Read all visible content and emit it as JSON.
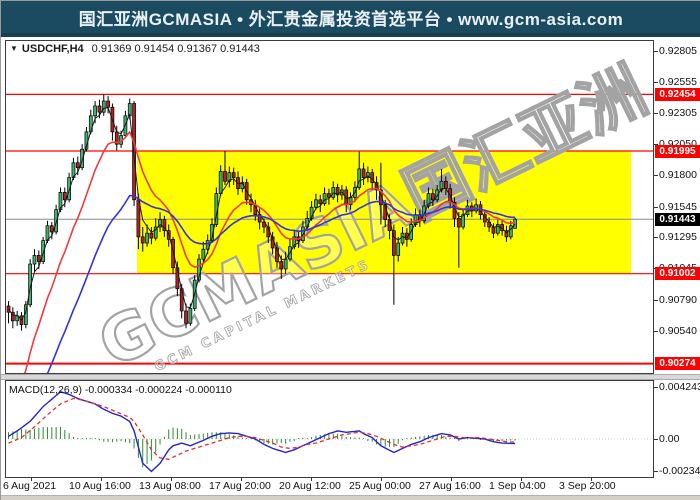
{
  "banner": {
    "text": "国汇亚洲GCMASIA • 外汇贵金属投资首选平台 • www.gcm-asia.com",
    "bg": "#1b4b61"
  },
  "chart": {
    "symbol": "USDCHF,H4",
    "dropdown_marker": "▼",
    "ohlc_text": "0.91369 0.91454 0.91367 0.91443"
  },
  "price_axis": {
    "ticks": [
      "0.92805",
      "0.92555",
      "0.92305",
      "0.92050",
      "0.91800",
      "0.91545",
      "0.91295",
      "0.91045",
      "0.90790",
      "0.90540"
    ],
    "level_badges": [
      {
        "label": "0.92454",
        "price": 0.92454,
        "type": "resistance"
      },
      {
        "label": "0.91995",
        "price": 0.91995,
        "type": "resistance"
      },
      {
        "label": "0.91002",
        "price": 0.91002,
        "type": "support"
      },
      {
        "label": "0.90274",
        "price": 0.90274,
        "type": "support"
      }
    ],
    "current_badge": {
      "label": "0.91443",
      "price": 0.91443
    }
  },
  "time_axis": {
    "labels": [
      "6 Aug 2021",
      "10 Aug 16:00",
      "13 Aug 08:00",
      "17 Aug 20:00",
      "20 Aug 12:00",
      "25 Aug 00:00",
      "27 Aug 16:00",
      "1 Sep 04:00",
      "3 Sep 20:00"
    ]
  },
  "macd_panel": {
    "indicator_label": "MACD(12,26,9)",
    "values_text": "-0.000334 -0.000224 -0.000110",
    "axis_ticks": [
      {
        "label": "0.004243",
        "value": 0.004243
      },
      {
        "label": "0.00",
        "value": 0.0
      },
      {
        "label": "-0.002345",
        "value": -0.002345
      }
    ]
  },
  "watermark": {
    "main": "GCMASIA国汇亚洲",
    "sub": "GCM CAPITAL MARKETS"
  },
  "colors": {
    "bull": "#3cb371",
    "bear": "#b22222",
    "wick": "#000000",
    "ma_fast": "#1a1a1a",
    "ma_mid": "#ef3b3b",
    "ma_slow": "#3434dd",
    "level_line": "#ff0000",
    "current_line": "#8a8a8a",
    "macd_line": "#2424cc",
    "signal_line": "#e03030",
    "histogram": "#2e8b2e",
    "highlight": "#ffff00",
    "badge_red": "#ff0000",
    "badge_black": "#000000"
  },
  "chart_data": {
    "type": "candlestick",
    "symbol": "USDCHF",
    "timeframe": "H4",
    "title": "USDCHF,H4",
    "last_ohlc": {
      "open": 0.91369,
      "high": 0.91454,
      "low": 0.91367,
      "close": 0.91443
    },
    "price_axis_top": 0.92805,
    "price_axis_bottom": 0.90274,
    "levels": {
      "resistance": [
        0.92454,
        0.91995
      ],
      "support": [
        0.91002,
        0.90274
      ],
      "current": 0.91443
    },
    "highlight_zone": {
      "price_top": 0.91995,
      "price_bottom": 0.91002
    },
    "x_labels": [
      "6 Aug 2021",
      "10 Aug 16:00",
      "13 Aug 08:00",
      "17 Aug 20:00",
      "20 Aug 12:00",
      "25 Aug 00:00",
      "27 Aug 16:00",
      "1 Sep 04:00",
      "3 Sep 20:00"
    ],
    "candles": [
      [
        0.9074,
        0.9078,
        0.906,
        0.9069
      ],
      [
        0.9069,
        0.9073,
        0.9056,
        0.9062
      ],
      [
        0.9062,
        0.907,
        0.9058,
        0.9066
      ],
      [
        0.9066,
        0.9069,
        0.9054,
        0.9059
      ],
      [
        0.9059,
        0.9078,
        0.9056,
        0.9075
      ],
      [
        0.9075,
        0.9112,
        0.9073,
        0.9108
      ],
      [
        0.9108,
        0.912,
        0.9102,
        0.9115
      ],
      [
        0.9115,
        0.9119,
        0.9104,
        0.911
      ],
      [
        0.911,
        0.913,
        0.9108,
        0.9127
      ],
      [
        0.9127,
        0.9143,
        0.9125,
        0.9139
      ],
      [
        0.9139,
        0.9142,
        0.9128,
        0.9134
      ],
      [
        0.9134,
        0.9156,
        0.9132,
        0.9152
      ],
      [
        0.9152,
        0.917,
        0.915,
        0.9166
      ],
      [
        0.9166,
        0.917,
        0.9154,
        0.916
      ],
      [
        0.916,
        0.9182,
        0.9158,
        0.9178
      ],
      [
        0.9178,
        0.9194,
        0.9176,
        0.919
      ],
      [
        0.919,
        0.9195,
        0.918,
        0.9186
      ],
      [
        0.9186,
        0.9205,
        0.9184,
        0.9201
      ],
      [
        0.9201,
        0.9219,
        0.9199,
        0.9215
      ],
      [
        0.9215,
        0.9233,
        0.9213,
        0.9228
      ],
      [
        0.9228,
        0.924,
        0.9222,
        0.9236
      ],
      [
        0.9236,
        0.9241,
        0.9226,
        0.9231
      ],
      [
        0.9231,
        0.92454,
        0.9228,
        0.924
      ],
      [
        0.924,
        0.9244,
        0.923,
        0.9235
      ],
      [
        0.9235,
        0.9238,
        0.9208,
        0.9215
      ],
      [
        0.9215,
        0.922,
        0.92,
        0.9205
      ],
      [
        0.9205,
        0.9216,
        0.9202,
        0.9212
      ],
      [
        0.9212,
        0.9232,
        0.921,
        0.9228
      ],
      [
        0.9228,
        0.9242,
        0.9225,
        0.9238
      ],
      [
        0.9238,
        0.924,
        0.9155,
        0.916
      ],
      [
        0.916,
        0.9165,
        0.912,
        0.913
      ],
      [
        0.913,
        0.9138,
        0.9118,
        0.9125
      ],
      [
        0.9125,
        0.914,
        0.9122,
        0.9133
      ],
      [
        0.9133,
        0.9138,
        0.9124,
        0.9129
      ],
      [
        0.9129,
        0.9145,
        0.9127,
        0.9138
      ],
      [
        0.9138,
        0.915,
        0.9134,
        0.9144
      ],
      [
        0.9144,
        0.9147,
        0.913,
        0.9135
      ],
      [
        0.9135,
        0.914,
        0.9122,
        0.9128
      ],
      [
        0.9128,
        0.913,
        0.91,
        0.9105
      ],
      [
        0.9105,
        0.911,
        0.9082,
        0.9088
      ],
      [
        0.9088,
        0.9092,
        0.9064,
        0.907
      ],
      [
        0.907,
        0.9076,
        0.9056,
        0.906
      ],
      [
        0.906,
        0.9076,
        0.9058,
        0.9072
      ],
      [
        0.9072,
        0.9099,
        0.907,
        0.9095
      ],
      [
        0.9095,
        0.9116,
        0.9093,
        0.9112
      ],
      [
        0.9112,
        0.9126,
        0.9108,
        0.912
      ],
      [
        0.912,
        0.9132,
        0.9116,
        0.9127
      ],
      [
        0.9127,
        0.9145,
        0.9125,
        0.914
      ],
      [
        0.914,
        0.917,
        0.9138,
        0.9165
      ],
      [
        0.9165,
        0.9188,
        0.9163,
        0.9183
      ],
      [
        0.9183,
        0.91995,
        0.9172,
        0.9175
      ],
      [
        0.9175,
        0.9187,
        0.917,
        0.9182
      ],
      [
        0.9182,
        0.9186,
        0.9172,
        0.9178
      ],
      [
        0.9178,
        0.9183,
        0.9164,
        0.9169
      ],
      [
        0.9169,
        0.9179,
        0.9166,
        0.9174
      ],
      [
        0.9174,
        0.9177,
        0.9156,
        0.916
      ],
      [
        0.916,
        0.9165,
        0.915,
        0.9156
      ],
      [
        0.9156,
        0.916,
        0.9143,
        0.9148
      ],
      [
        0.9148,
        0.9153,
        0.9136,
        0.9142
      ],
      [
        0.9142,
        0.9145,
        0.9133,
        0.9138
      ],
      [
        0.9138,
        0.9142,
        0.9125,
        0.913
      ],
      [
        0.913,
        0.9134,
        0.9116,
        0.9121
      ],
      [
        0.9121,
        0.9126,
        0.9105,
        0.911
      ],
      [
        0.911,
        0.9115,
        0.9096,
        0.9104
      ],
      [
        0.9104,
        0.9118,
        0.91,
        0.9112
      ],
      [
        0.9112,
        0.9128,
        0.911,
        0.9122
      ],
      [
        0.9122,
        0.9136,
        0.912,
        0.913
      ],
      [
        0.913,
        0.9135,
        0.9121,
        0.9127
      ],
      [
        0.9127,
        0.9143,
        0.9125,
        0.9138
      ],
      [
        0.9138,
        0.9151,
        0.9136,
        0.9145
      ],
      [
        0.9145,
        0.9159,
        0.9143,
        0.9154
      ],
      [
        0.9154,
        0.9165,
        0.9152,
        0.916
      ],
      [
        0.916,
        0.9164,
        0.915,
        0.9157
      ],
      [
        0.9157,
        0.917,
        0.9155,
        0.9165
      ],
      [
        0.9165,
        0.9169,
        0.9156,
        0.9162
      ],
      [
        0.9162,
        0.9175,
        0.916,
        0.917
      ],
      [
        0.917,
        0.9173,
        0.9158,
        0.9164
      ],
      [
        0.9164,
        0.9172,
        0.916,
        0.9168
      ],
      [
        0.9168,
        0.9171,
        0.915,
        0.9156
      ],
      [
        0.9156,
        0.9166,
        0.9152,
        0.9162
      ],
      [
        0.9162,
        0.9175,
        0.9158,
        0.917
      ],
      [
        0.917,
        0.9199,
        0.9168,
        0.9185
      ],
      [
        0.9185,
        0.919,
        0.9172,
        0.9178
      ],
      [
        0.9178,
        0.9187,
        0.9174,
        0.9182
      ],
      [
        0.9182,
        0.9185,
        0.9168,
        0.9174
      ],
      [
        0.9174,
        0.9179,
        0.916,
        0.9168
      ],
      [
        0.9168,
        0.919,
        0.914,
        0.9156
      ],
      [
        0.9156,
        0.916,
        0.9138,
        0.9144
      ],
      [
        0.9144,
        0.9148,
        0.9128,
        0.9135
      ],
      [
        0.9135,
        0.914,
        0.9075,
        0.9115
      ],
      [
        0.9115,
        0.913,
        0.911,
        0.9125
      ],
      [
        0.9125,
        0.9138,
        0.9123,
        0.9133
      ],
      [
        0.9133,
        0.9137,
        0.9122,
        0.9128
      ],
      [
        0.9128,
        0.9145,
        0.9126,
        0.914
      ],
      [
        0.914,
        0.9153,
        0.9138,
        0.9148
      ],
      [
        0.9148,
        0.9152,
        0.9138,
        0.9143
      ],
      [
        0.9143,
        0.916,
        0.9141,
        0.9155
      ],
      [
        0.9155,
        0.917,
        0.9153,
        0.9165
      ],
      [
        0.9165,
        0.9169,
        0.9155,
        0.916
      ],
      [
        0.916,
        0.9172,
        0.9158,
        0.9168
      ],
      [
        0.9168,
        0.9185,
        0.9166,
        0.9175
      ],
      [
        0.9175,
        0.9179,
        0.9164,
        0.9169
      ],
      [
        0.9169,
        0.9173,
        0.9153,
        0.9158
      ],
      [
        0.9158,
        0.9162,
        0.9138,
        0.9145
      ],
      [
        0.9145,
        0.915,
        0.9105,
        0.9138
      ],
      [
        0.9138,
        0.9152,
        0.9136,
        0.9148
      ],
      [
        0.9148,
        0.916,
        0.9146,
        0.9155
      ],
      [
        0.9155,
        0.9158,
        0.9146,
        0.9151
      ],
      [
        0.9151,
        0.9161,
        0.9149,
        0.9156
      ],
      [
        0.9156,
        0.9159,
        0.9144,
        0.9148
      ],
      [
        0.9148,
        0.9152,
        0.9138,
        0.9142
      ],
      [
        0.9142,
        0.9146,
        0.9134,
        0.9138
      ],
      [
        0.9138,
        0.9141,
        0.9129,
        0.9133
      ],
      [
        0.9133,
        0.9144,
        0.9131,
        0.914
      ],
      [
        0.914,
        0.9143,
        0.9131,
        0.9135
      ],
      [
        0.9135,
        0.9139,
        0.9126,
        0.913
      ],
      [
        0.913,
        0.9143,
        0.9128,
        0.9139
      ],
      [
        0.91369,
        0.91454,
        0.91367,
        0.91443
      ]
    ],
    "macd": {
      "label": "MACD(12,26,9)",
      "values": {
        "macd": -0.000334,
        "signal": -0.000224,
        "histogram": -0.00011
      },
      "axis_range": {
        "top": 0.004243,
        "zero": 0.0,
        "bottom": -0.002345
      },
      "macd_keypoints": [
        [
          0,
          0.0002
        ],
        [
          2,
          0.0006
        ],
        [
          5,
          0.0013
        ],
        [
          8,
          0.0024
        ],
        [
          12,
          0.0035
        ],
        [
          14,
          0.0033
        ],
        [
          16,
          0.003
        ],
        [
          18,
          0.0028
        ],
        [
          20,
          0.0026
        ],
        [
          22,
          0.0022
        ],
        [
          24,
          0.0019
        ],
        [
          26,
          0.0017
        ],
        [
          28,
          0.0013
        ],
        [
          29,
          0.0006
        ],
        [
          30,
          -0.0006
        ],
        [
          31,
          -0.0018
        ],
        [
          33,
          -0.0024
        ],
        [
          35,
          -0.0018
        ],
        [
          36,
          -0.0013
        ],
        [
          37,
          -0.0008
        ],
        [
          38,
          -0.0005
        ],
        [
          40,
          -0.0003
        ],
        [
          42,
          -0.0005
        ],
        [
          45,
          -0.0001
        ],
        [
          47,
          0.0002
        ],
        [
          49,
          0.0004
        ],
        [
          51,
          0.00045
        ],
        [
          53,
          0.0004
        ],
        [
          55,
          0.0002
        ],
        [
          57,
          0.0
        ],
        [
          59,
          -0.0004
        ],
        [
          61,
          -0.0007
        ],
        [
          64,
          -0.001
        ],
        [
          66,
          -0.0008
        ],
        [
          68,
          -0.0005
        ],
        [
          70,
          -0.0002
        ],
        [
          72,
          0.0001
        ],
        [
          74,
          0.0004
        ],
        [
          76,
          0.0006
        ],
        [
          78,
          0.0005
        ],
        [
          81,
          0.0006
        ],
        [
          82,
          0.0004
        ],
        [
          84,
          0.0001
        ],
        [
          86,
          -0.0005
        ],
        [
          89,
          -0.001
        ],
        [
          91,
          -0.0007
        ],
        [
          93,
          -0.0004
        ],
        [
          95,
          -0.0002
        ],
        [
          97,
          0.0001
        ],
        [
          100,
          0.0004
        ],
        [
          102,
          0.0003
        ],
        [
          104,
          0.0
        ],
        [
          106,
          0.0001
        ],
        [
          110,
          0.0
        ],
        [
          112,
          -0.0002
        ],
        [
          114,
          -0.0003
        ],
        [
          117,
          -0.000334
        ]
      ],
      "signal_keypoints": [
        [
          0,
          -0.0003
        ],
        [
          3,
          0.0001
        ],
        [
          6,
          0.0009
        ],
        [
          9,
          0.0018
        ],
        [
          12,
          0.0026
        ],
        [
          15,
          0.003
        ],
        [
          17,
          0.0029
        ],
        [
          19,
          0.0027
        ],
        [
          22,
          0.0024
        ],
        [
          25,
          0.002
        ],
        [
          28,
          0.0016
        ],
        [
          29,
          0.0013
        ],
        [
          31,
          0.0003
        ],
        [
          33,
          -0.0008
        ],
        [
          35,
          -0.0014
        ],
        [
          37,
          -0.0015
        ],
        [
          39,
          -0.0012
        ],
        [
          41,
          -0.0009
        ],
        [
          43,
          -0.0007
        ],
        [
          45,
          -0.0005
        ],
        [
          47,
          -0.0003
        ],
        [
          49,
          -0.0001
        ],
        [
          51,
          0.0001
        ],
        [
          53,
          0.0002
        ],
        [
          55,
          0.0002
        ],
        [
          57,
          0.0001
        ],
        [
          59,
          -0.0001
        ],
        [
          61,
          -0.0003
        ],
        [
          63,
          -0.0006
        ],
        [
          65,
          -0.0007
        ],
        [
          67,
          -0.0006
        ],
        [
          69,
          -0.0004
        ],
        [
          71,
          -0.0003
        ],
        [
          73,
          -0.0001
        ],
        [
          75,
          0.0001
        ],
        [
          77,
          0.0003
        ],
        [
          79,
          0.0004
        ],
        [
          81,
          0.0005
        ],
        [
          83,
          0.0004
        ],
        [
          85,
          0.0002
        ],
        [
          87,
          -0.0001
        ],
        [
          89,
          -0.0004
        ],
        [
          91,
          -0.0006
        ],
        [
          93,
          -0.0005
        ],
        [
          95,
          -0.0004
        ],
        [
          97,
          -0.0002
        ],
        [
          99,
          0.0
        ],
        [
          101,
          0.0002
        ],
        [
          103,
          0.0002
        ],
        [
          105,
          0.0001
        ],
        [
          109,
          0.0001
        ],
        [
          111,
          0.0
        ],
        [
          113,
          -0.0001
        ],
        [
          115,
          -0.0002
        ],
        [
          117,
          -0.000224
        ]
      ]
    }
  }
}
